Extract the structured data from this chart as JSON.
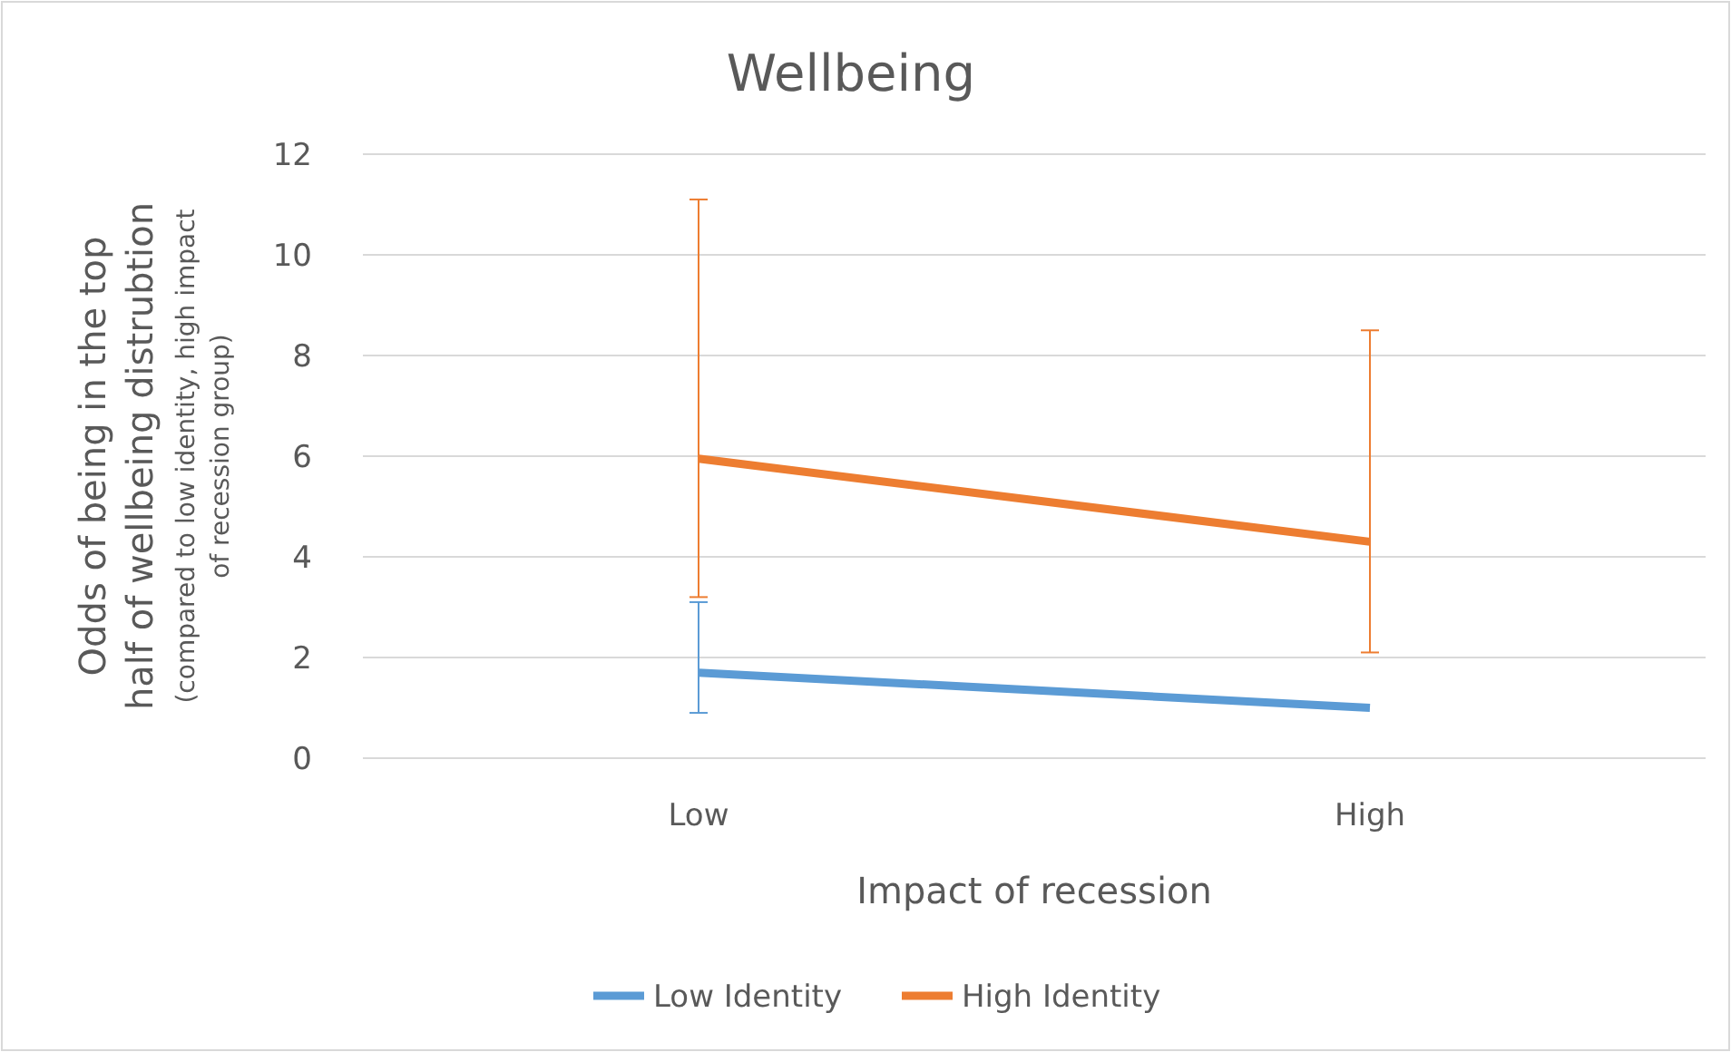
{
  "chart_data": {
    "type": "line",
    "title": "Wellbeing",
    "xlabel": "Impact of recession",
    "ylabel": "Odds of being in the top half of wellbeing distrubtion",
    "subtitle": "(compared to low identity, high impact of recession group)",
    "categories": [
      "Low",
      "High"
    ],
    "series": [
      {
        "name": "Low Identity",
        "color": "#5b9bd5",
        "values": [
          1.7,
          1.0
        ],
        "errors": [
          [
            0.9,
            3.1
          ],
          null
        ]
      },
      {
        "name": "High Identity",
        "color": "#ed7d31",
        "values": [
          5.95,
          4.3
        ],
        "errors": [
          [
            3.2,
            11.1
          ],
          [
            2.1,
            8.5
          ]
        ]
      }
    ],
    "ylim": [
      0,
      12
    ],
    "yticks": [
      0,
      2,
      4,
      6,
      8,
      10,
      12
    ],
    "grid": "y",
    "legend": "bottom",
    "marker": "none",
    "line_style": "solid"
  }
}
